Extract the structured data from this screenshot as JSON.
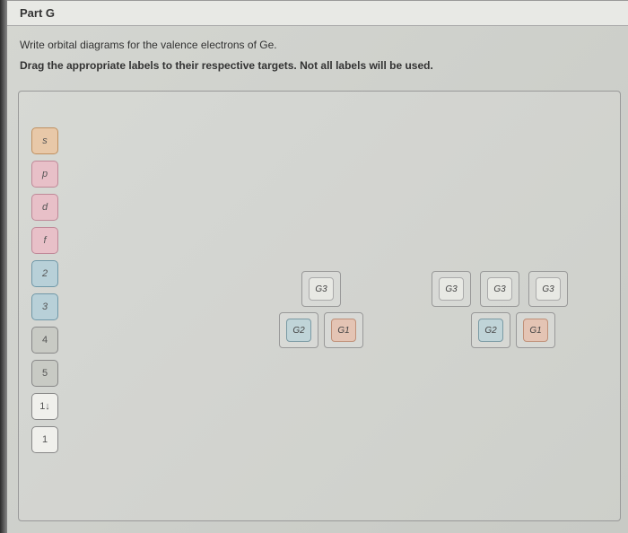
{
  "part_header": "Part G",
  "instructions": {
    "line1": "Write orbital diagrams for the valence electrons of Ge.",
    "line2": "Drag the appropriate labels to their respective targets. Not all labels will be used."
  },
  "palette": [
    {
      "text": "s",
      "cls": "orange"
    },
    {
      "text": "p",
      "cls": "pink"
    },
    {
      "text": "d",
      "cls": "pink"
    },
    {
      "text": "f",
      "cls": "pink"
    },
    {
      "text": "2",
      "cls": "blue"
    },
    {
      "text": "3",
      "cls": "blue"
    },
    {
      "text": "4",
      "cls": "grey"
    },
    {
      "text": "5",
      "cls": "grey"
    },
    {
      "text": "1↓",
      "cls": "white"
    },
    {
      "text": "1",
      "cls": "white"
    }
  ],
  "group_left": {
    "top": [
      {
        "fill": "G3",
        "cls": "g3"
      }
    ],
    "bottom": [
      {
        "fill": "G2",
        "cls": "g2"
      },
      {
        "fill": "G1",
        "cls": "g1"
      }
    ]
  },
  "group_right": {
    "top": [
      {
        "fill": "G3",
        "cls": "g3"
      },
      {
        "fill": "G3",
        "cls": "g3"
      },
      {
        "fill": "G3",
        "cls": "g3"
      }
    ],
    "bottom": [
      {
        "fill": "G2",
        "cls": "g2"
      },
      {
        "fill": "G1",
        "cls": "g1"
      }
    ]
  }
}
